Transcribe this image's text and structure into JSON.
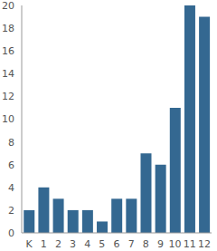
{
  "chart_data": {
    "type": "bar",
    "categories": [
      "K",
      "1",
      "2",
      "3",
      "4",
      "5",
      "6",
      "7",
      "8",
      "9",
      "10",
      "11",
      "12"
    ],
    "values": [
      2,
      4,
      3,
      2,
      2,
      1,
      3,
      3,
      7,
      6,
      11,
      20,
      19
    ],
    "color": "#346891",
    "ylim": [
      0,
      20
    ],
    "yticks": [
      0,
      2,
      4,
      6,
      8,
      10,
      12,
      14,
      16,
      18,
      20
    ],
    "grid": false
  }
}
